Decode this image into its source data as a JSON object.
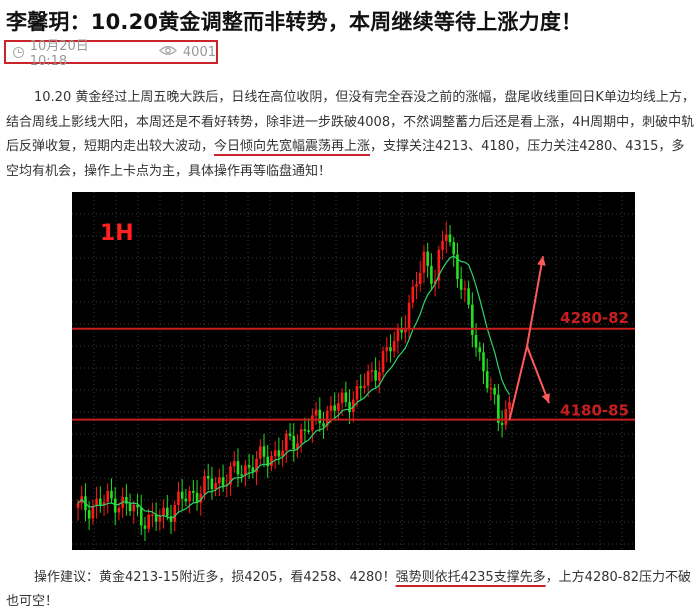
{
  "article": {
    "title": "李馨玥：10.20黄金调整而非转势，本周继续等待上涨力度！",
    "date": "10月20日 10:18",
    "views": "4001",
    "para_before": "10.20 黄金经过上周五晚大跌后，日线在高位收阴，但没有完全吞没之前的涨幅，盘尾收线重回日K单边均线上方，结合周线上影线大阳，本周还是不看好转势，除非进一步跌破4008，不然调整蓄力后还是看上涨，4H周期中，刺破中轨后反弹收复，短期内走出较大波动，",
    "para_highlight": "今日倾向先宽幅震荡再上涨",
    "para_after": "，支撑关注4213、4180，压力关注4280、4315，多空均有机会，操作上卡点为主，具体操作再等临盘通知！",
    "foot_before": "操作建议：黄金4213-15附近多，损4205，看4258、4280！",
    "foot_highlight": "强势则依托4235支撑先多",
    "foot_after": "，上方4280-82压力不破也可空！"
  },
  "chart_data": {
    "type": "candlestick",
    "timeframe_label": "1H",
    "levels": [
      {
        "label": "4280-82",
        "value": 4281
      },
      {
        "label": "4180-85",
        "value": 4182
      }
    ],
    "ylim": [
      4040,
      4430
    ],
    "colors": {
      "up": "#ff1a1a",
      "down": "#22e022",
      "ma": "#2fd46b",
      "level": "#c81e1e",
      "arrow": "#ff5a5a"
    }
  }
}
